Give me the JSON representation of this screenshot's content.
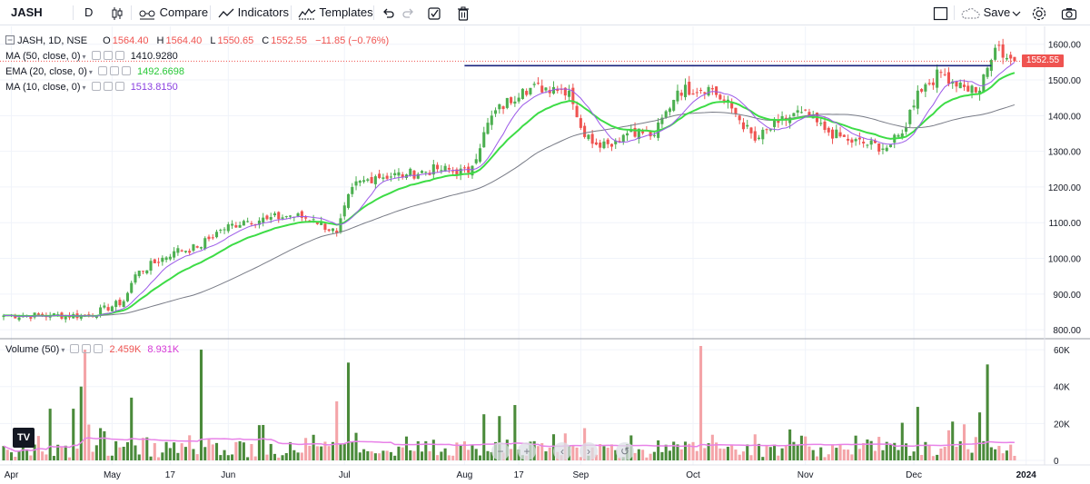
{
  "toolbar": {
    "symbol": "JASH",
    "interval": "D",
    "compare_label": "Compare",
    "indicators_label": "Indicators",
    "templates_label": "Templates",
    "save_label": "Save"
  },
  "legend": {
    "title": "JASH, 1D, NSE",
    "o_label": "O",
    "o_value": "1564.40",
    "h_label": "H",
    "h_value": "1564.40",
    "l_label": "L",
    "l_value": "1550.65",
    "c_label": "C",
    "c_value": "1552.55",
    "change": "−11.85 (−0.76%)",
    "ma50_label": "MA (50, close, 0)",
    "ma50_value": "1410.9280",
    "ema20_label": "EMA (20, close, 0)",
    "ema20_value": "1492.6698",
    "ma10_label": "MA (10, close, 0)",
    "ma10_value": "1513.8150",
    "volume_label": "Volume (50)",
    "volume_value": "2.459K",
    "volume_ma_value": "8.931K"
  },
  "price_badge": "1552.55",
  "colors": {
    "up": "#4caf50",
    "down": "#ef5350",
    "ma50": "#787b86",
    "ema20": "#3ddc46",
    "ma10": "#9c5ae8",
    "hline": "#1a237e",
    "vol_up": "#4a8a3a",
    "vol_down": "#f4a4a8",
    "vol_ma": "#e882e8"
  },
  "chart_data": {
    "type": "candlestick",
    "symbol": "JASH",
    "price_axis": {
      "ticks": [
        "1600.00",
        "1500.00",
        "1400.00",
        "1300.00",
        "1200.00",
        "1100.00",
        "1000.00",
        "900.00",
        "800.00"
      ],
      "range": [
        780,
        1640
      ]
    },
    "volume_axis": {
      "ticks": [
        "60K",
        "40K",
        "20K",
        "0"
      ],
      "range": [
        0,
        62000
      ]
    },
    "time_axis": {
      "labels": [
        "Apr",
        "May",
        "17",
        "Jun",
        "Jul",
        "Aug",
        "17",
        "Sep",
        "Oct",
        "Nov",
        "Dec",
        "2024"
      ]
    },
    "horizontal_line": 1540,
    "anchors": [
      {
        "x": 0,
        "c": 840
      },
      {
        "x": 12,
        "c": 840
      },
      {
        "x": 22,
        "c": 840
      },
      {
        "x": 31,
        "c": 880
      },
      {
        "x": 34,
        "c": 955
      },
      {
        "x": 44,
        "c": 1020
      },
      {
        "x": 50,
        "c": 1030
      },
      {
        "x": 56,
        "c": 1080
      },
      {
        "x": 62,
        "c": 1105
      },
      {
        "x": 68,
        "c": 1110
      },
      {
        "x": 74,
        "c": 1120
      },
      {
        "x": 80,
        "c": 1110
      },
      {
        "x": 86,
        "c": 1070
      },
      {
        "x": 90,
        "c": 1200
      },
      {
        "x": 96,
        "c": 1230
      },
      {
        "x": 104,
        "c": 1235
      },
      {
        "x": 112,
        "c": 1250
      },
      {
        "x": 120,
        "c": 1240
      },
      {
        "x": 126,
        "c": 1400
      },
      {
        "x": 134,
        "c": 1475
      },
      {
        "x": 142,
        "c": 1480
      },
      {
        "x": 146,
        "c": 1470
      },
      {
        "x": 150,
        "c": 1340
      },
      {
        "x": 156,
        "c": 1320
      },
      {
        "x": 162,
        "c": 1360
      },
      {
        "x": 168,
        "c": 1345
      },
      {
        "x": 174,
        "c": 1470
      },
      {
        "x": 182,
        "c": 1480
      },
      {
        "x": 188,
        "c": 1420
      },
      {
        "x": 194,
        "c": 1330
      },
      {
        "x": 200,
        "c": 1380
      },
      {
        "x": 206,
        "c": 1410
      },
      {
        "x": 212,
        "c": 1360
      },
      {
        "x": 218,
        "c": 1330
      },
      {
        "x": 228,
        "c": 1310
      },
      {
        "x": 232,
        "c": 1350
      },
      {
        "x": 236,
        "c": 1470
      },
      {
        "x": 242,
        "c": 1520
      },
      {
        "x": 248,
        "c": 1480
      },
      {
        "x": 252,
        "c": 1470
      },
      {
        "x": 256,
        "c": 1590
      },
      {
        "x": 260,
        "c": 1560
      },
      {
        "x": 261,
        "c": 1552.55
      }
    ],
    "volume_spikes": [
      {
        "x": 20,
        "v": 40000
      },
      {
        "x": 21,
        "v": 60000
      },
      {
        "x": 18,
        "v": 28000
      },
      {
        "x": 12,
        "v": 28000
      },
      {
        "x": 33,
        "v": 34000
      },
      {
        "x": 51,
        "v": 60000
      },
      {
        "x": 86,
        "v": 32000
      },
      {
        "x": 89,
        "v": 53000
      },
      {
        "x": 124,
        "v": 25000
      },
      {
        "x": 128,
        "v": 24000
      },
      {
        "x": 132,
        "v": 30000
      },
      {
        "x": 180,
        "v": 62000
      },
      {
        "x": 236,
        "v": 29000
      },
      {
        "x": 252,
        "v": 26000
      },
      {
        "x": 254,
        "v": 52000
      }
    ],
    "axis_dates": [
      {
        "label": "Apr",
        "x": 2
      },
      {
        "label": "May",
        "x": 28
      },
      {
        "label": "17",
        "x": 43
      },
      {
        "label": "Jun",
        "x": 58
      },
      {
        "label": "Jul",
        "x": 88
      },
      {
        "label": "Aug",
        "x": 119
      },
      {
        "label": "17",
        "x": 133
      },
      {
        "label": "Sep",
        "x": 149
      },
      {
        "label": "Oct",
        "x": 178
      },
      {
        "label": "Nov",
        "x": 207
      },
      {
        "label": "Dec",
        "x": 235
      },
      {
        "label": "2024",
        "x": 264
      }
    ]
  }
}
